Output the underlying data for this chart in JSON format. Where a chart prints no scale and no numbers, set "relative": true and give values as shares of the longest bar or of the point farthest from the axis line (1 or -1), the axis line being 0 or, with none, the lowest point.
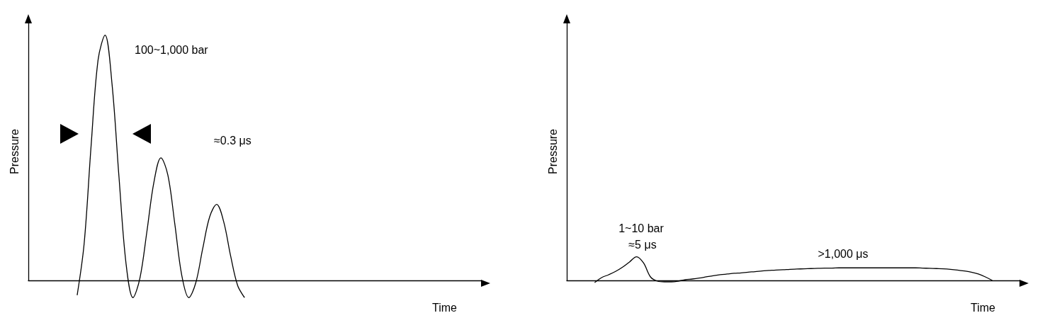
{
  "chart_data": [
    {
      "type": "line",
      "relative": true,
      "xlabel": "Time",
      "ylabel": "Pressure",
      "marker": "none",
      "annotations": [
        "100~1,000 bar",
        "≈0.3 μs"
      ],
      "categories": [
        null,
        null,
        null,
        null,
        null,
        null,
        null,
        null,
        null,
        null,
        null,
        null,
        null,
        null,
        null,
        null,
        null,
        null,
        null,
        null,
        null,
        null,
        null,
        null,
        null,
        null,
        null,
        null,
        null,
        null,
        null,
        null,
        null,
        null,
        null,
        null,
        null,
        null,
        null,
        null,
        null,
        null,
        null,
        null,
        null,
        null,
        null,
        null,
        null,
        null,
        null,
        null,
        null,
        null,
        null,
        null,
        null,
        null,
        null,
        null,
        null,
        null,
        null,
        null,
        null,
        null
      ],
      "series": [
        {
          "color": "#000000",
          "values": [
            null,
            null,
            null,
            null,
            null,
            null,
            null,
            -0.06,
            0.15,
            0.55,
            0.9,
            1.0,
            0.8,
            0.42,
            0.07,
            -0.07,
            0.01,
            0.2,
            0.4,
            0.5,
            0.43,
            0.23,
            0.02,
            -0.07,
            -0.01,
            0.13,
            0.26,
            0.31,
            0.24,
            0.1,
            -0.02,
            -0.07,
            null,
            null,
            null,
            null,
            null,
            null,
            null,
            null,
            null,
            null,
            null,
            null,
            null,
            null,
            null,
            null,
            null,
            null,
            null,
            null,
            null,
            null,
            null,
            null,
            null,
            null,
            null,
            null,
            null,
            null,
            null,
            null,
            null,
            null
          ]
        }
      ]
    },
    {
      "type": "line",
      "relative": true,
      "xlabel": "Time",
      "ylabel": "Pressure",
      "marker": "none",
      "annotations": [
        "1~10 bar",
        "≈5 μs",
        ">1,000 μs"
      ],
      "categories": [
        null,
        null,
        null,
        null,
        null,
        null,
        null,
        null,
        null,
        null,
        null,
        null,
        null,
        null,
        null,
        null,
        null,
        null,
        null,
        null,
        null,
        null,
        null,
        null,
        null,
        null,
        null,
        null,
        null,
        null,
        null,
        null,
        null,
        null,
        null,
        null,
        null,
        null,
        null,
        null,
        null,
        null,
        null,
        null,
        null,
        null,
        null,
        null,
        null,
        null,
        null,
        null,
        null,
        null,
        null,
        null,
        null,
        null,
        null,
        null,
        null,
        null,
        null,
        null,
        null,
        null
      ],
      "series": [
        {
          "color": "#000000",
          "values": [
            null,
            null,
            null,
            null,
            -0.09,
            0.12,
            0.24,
            0.38,
            0.56,
            0.78,
            1.0,
            0.74,
            0.15,
            -0.03,
            -0.06,
            -0.06,
            -0.03,
            0.03,
            0.06,
            0.1,
            0.15,
            0.2,
            0.24,
            0.27,
            0.3,
            0.32,
            0.35,
            0.37,
            0.4,
            0.42,
            0.44,
            0.45,
            0.47,
            0.48,
            0.49,
            0.5,
            0.51,
            0.52,
            0.52,
            0.53,
            0.53,
            0.53,
            0.53,
            0.53,
            0.53,
            0.53,
            0.53,
            0.53,
            0.53,
            0.53,
            0.53,
            0.52,
            0.51,
            0.5,
            0.49,
            0.47,
            0.44,
            0.4,
            0.35,
            0.27,
            0.15,
            0,
            null,
            null,
            null,
            null
          ]
        }
      ]
    }
  ]
}
